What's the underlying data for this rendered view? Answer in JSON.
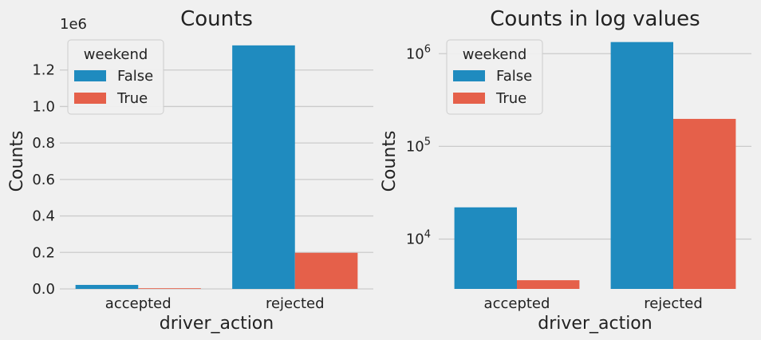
{
  "chart_data": [
    {
      "type": "bar",
      "title": "Counts",
      "xlabel": "driver_action",
      "ylabel": "Counts",
      "y_offset_label": "1e6",
      "categories": [
        "accepted",
        "rejected"
      ],
      "series": [
        {
          "name": "False",
          "color": "#1f8bbf",
          "values": [
            22000,
            1335000
          ]
        },
        {
          "name": "True",
          "color": "#e5604a",
          "values": [
            3600,
            198000
          ]
        }
      ],
      "ylim": [
        0,
        1400000
      ],
      "yticks": [
        {
          "value": 0,
          "label": "0.0"
        },
        {
          "value": 200000,
          "label": "0.2"
        },
        {
          "value": 400000,
          "label": "0.4"
        },
        {
          "value": 600000,
          "label": "0.6"
        },
        {
          "value": 800000,
          "label": "0.8"
        },
        {
          "value": 1000000,
          "label": "1.0"
        },
        {
          "value": 1200000,
          "label": "1.2"
        }
      ],
      "scale": "linear",
      "grid": "horizontal",
      "legend": {
        "title": "weekend",
        "placement": "upper left"
      }
    },
    {
      "type": "bar",
      "title": "Counts in log values",
      "xlabel": "driver_action",
      "ylabel": "Counts",
      "categories": [
        "accepted",
        "rejected"
      ],
      "series": [
        {
          "name": "False",
          "color": "#1f8bbf",
          "values": [
            22000,
            1335000
          ]
        },
        {
          "name": "True",
          "color": "#e5604a",
          "values": [
            3600,
            198000
          ]
        }
      ],
      "ylim": [
        2900,
        1650000
      ],
      "yticks": [
        {
          "value": 10000,
          "base": "10",
          "exp": "4"
        },
        {
          "value": 100000,
          "base": "10",
          "exp": "5"
        },
        {
          "value": 1000000,
          "base": "10",
          "exp": "6"
        }
      ],
      "scale": "log",
      "grid": "horizontal",
      "legend": {
        "title": "weekend",
        "placement": "upper left"
      }
    }
  ]
}
